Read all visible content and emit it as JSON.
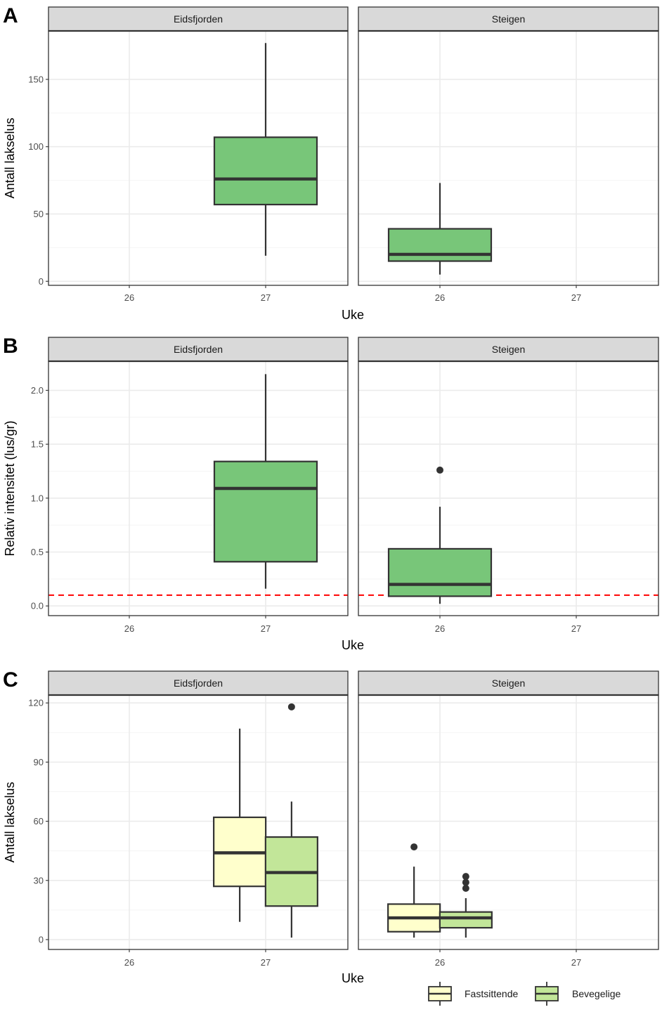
{
  "colors": {
    "strip_bg": "#d9d9d9",
    "border": "#333333",
    "grid_major": "#ebebeb",
    "grid_minor": "#f4f4f4",
    "box_green": "#78c679",
    "box_yellow": "#ffffcc",
    "box_lightgreen": "#c2e699",
    "threshold": "#ff0000",
    "text": "#1a1a1a",
    "tick": "#4d4d4d"
  },
  "legend": {
    "entries": [
      {
        "label": "Fastsittende",
        "color": "#ffffcc"
      },
      {
        "label": "Bevegelige",
        "color": "#c2e699"
      }
    ]
  },
  "chart_data": [
    {
      "type": "boxplot",
      "panel_label": "A",
      "ylabel": "Antall lakselus",
      "xlabel": "Uke",
      "x_categories": [
        "26",
        "27"
      ],
      "ylim": [
        -3,
        186
      ],
      "yticks": [
        0,
        50,
        100,
        150
      ],
      "facets": [
        {
          "title": "Eidsfjorden",
          "boxes": [
            {
              "x": "27",
              "offset": 0,
              "color": "#78c679",
              "min": 19,
              "q1": 57,
              "median": 76,
              "q3": 107,
              "max": 177,
              "outliers": []
            }
          ]
        },
        {
          "title": "Steigen",
          "boxes": [
            {
              "x": "26",
              "offset": 0,
              "color": "#78c679",
              "min": 5,
              "q1": 15,
              "median": 20,
              "q3": 39,
              "max": 73,
              "outliers": []
            }
          ]
        }
      ]
    },
    {
      "type": "boxplot",
      "panel_label": "B",
      "ylabel": "Relativ intensitet (lus/gr)",
      "xlabel": "Uke",
      "x_categories": [
        "26",
        "27"
      ],
      "ylim": [
        -0.09,
        2.27
      ],
      "yticks": [
        0.0,
        0.5,
        1.0,
        1.5,
        2.0
      ],
      "ytick_labels": [
        "0.0",
        "0.5",
        "1.0",
        "1.5",
        "2.0"
      ],
      "hline": {
        "y": 0.1,
        "color": "#ff0000",
        "style": "dashed"
      },
      "facets": [
        {
          "title": "Eidsfjorden",
          "boxes": [
            {
              "x": "27",
              "offset": 0,
              "color": "#78c679",
              "min": 0.16,
              "q1": 0.41,
              "median": 1.09,
              "q3": 1.34,
              "max": 2.15,
              "outliers": []
            }
          ]
        },
        {
          "title": "Steigen",
          "boxes": [
            {
              "x": "26",
              "offset": 0,
              "color": "#78c679",
              "min": 0.02,
              "q1": 0.09,
              "median": 0.2,
              "q3": 0.53,
              "max": 0.92,
              "outliers": [
                1.26
              ]
            }
          ]
        }
      ]
    },
    {
      "type": "boxplot",
      "panel_label": "C",
      "ylabel": "Antall lakselus",
      "xlabel": "Uke",
      "x_categories": [
        "26",
        "27"
      ],
      "ylim": [
        -5,
        124
      ],
      "yticks": [
        0,
        30,
        60,
        90,
        120
      ],
      "facets": [
        {
          "title": "Eidsfjorden",
          "boxes": [
            {
              "x": "27",
              "offset": -0.19,
              "color": "#ffffcc",
              "series": "Fastsittende",
              "min": 9,
              "q1": 27,
              "median": 44,
              "q3": 62,
              "max": 107,
              "outliers": []
            },
            {
              "x": "27",
              "offset": 0.19,
              "color": "#c2e699",
              "series": "Bevegelige",
              "min": 1,
              "q1": 17,
              "median": 34,
              "q3": 52,
              "max": 70,
              "outliers": [
                118
              ]
            }
          ]
        },
        {
          "title": "Steigen",
          "boxes": [
            {
              "x": "26",
              "offset": -0.19,
              "color": "#ffffcc",
              "series": "Fastsittende",
              "min": 1,
              "q1": 4,
              "median": 11,
              "q3": 18,
              "max": 37,
              "outliers": [
                47
              ]
            },
            {
              "x": "26",
              "offset": 0.19,
              "color": "#c2e699",
              "series": "Bevegelige",
              "min": 1,
              "q1": 6,
              "median": 11,
              "q3": 14,
              "max": 21,
              "outliers": [
                26,
                29,
                32
              ]
            }
          ]
        }
      ]
    }
  ]
}
